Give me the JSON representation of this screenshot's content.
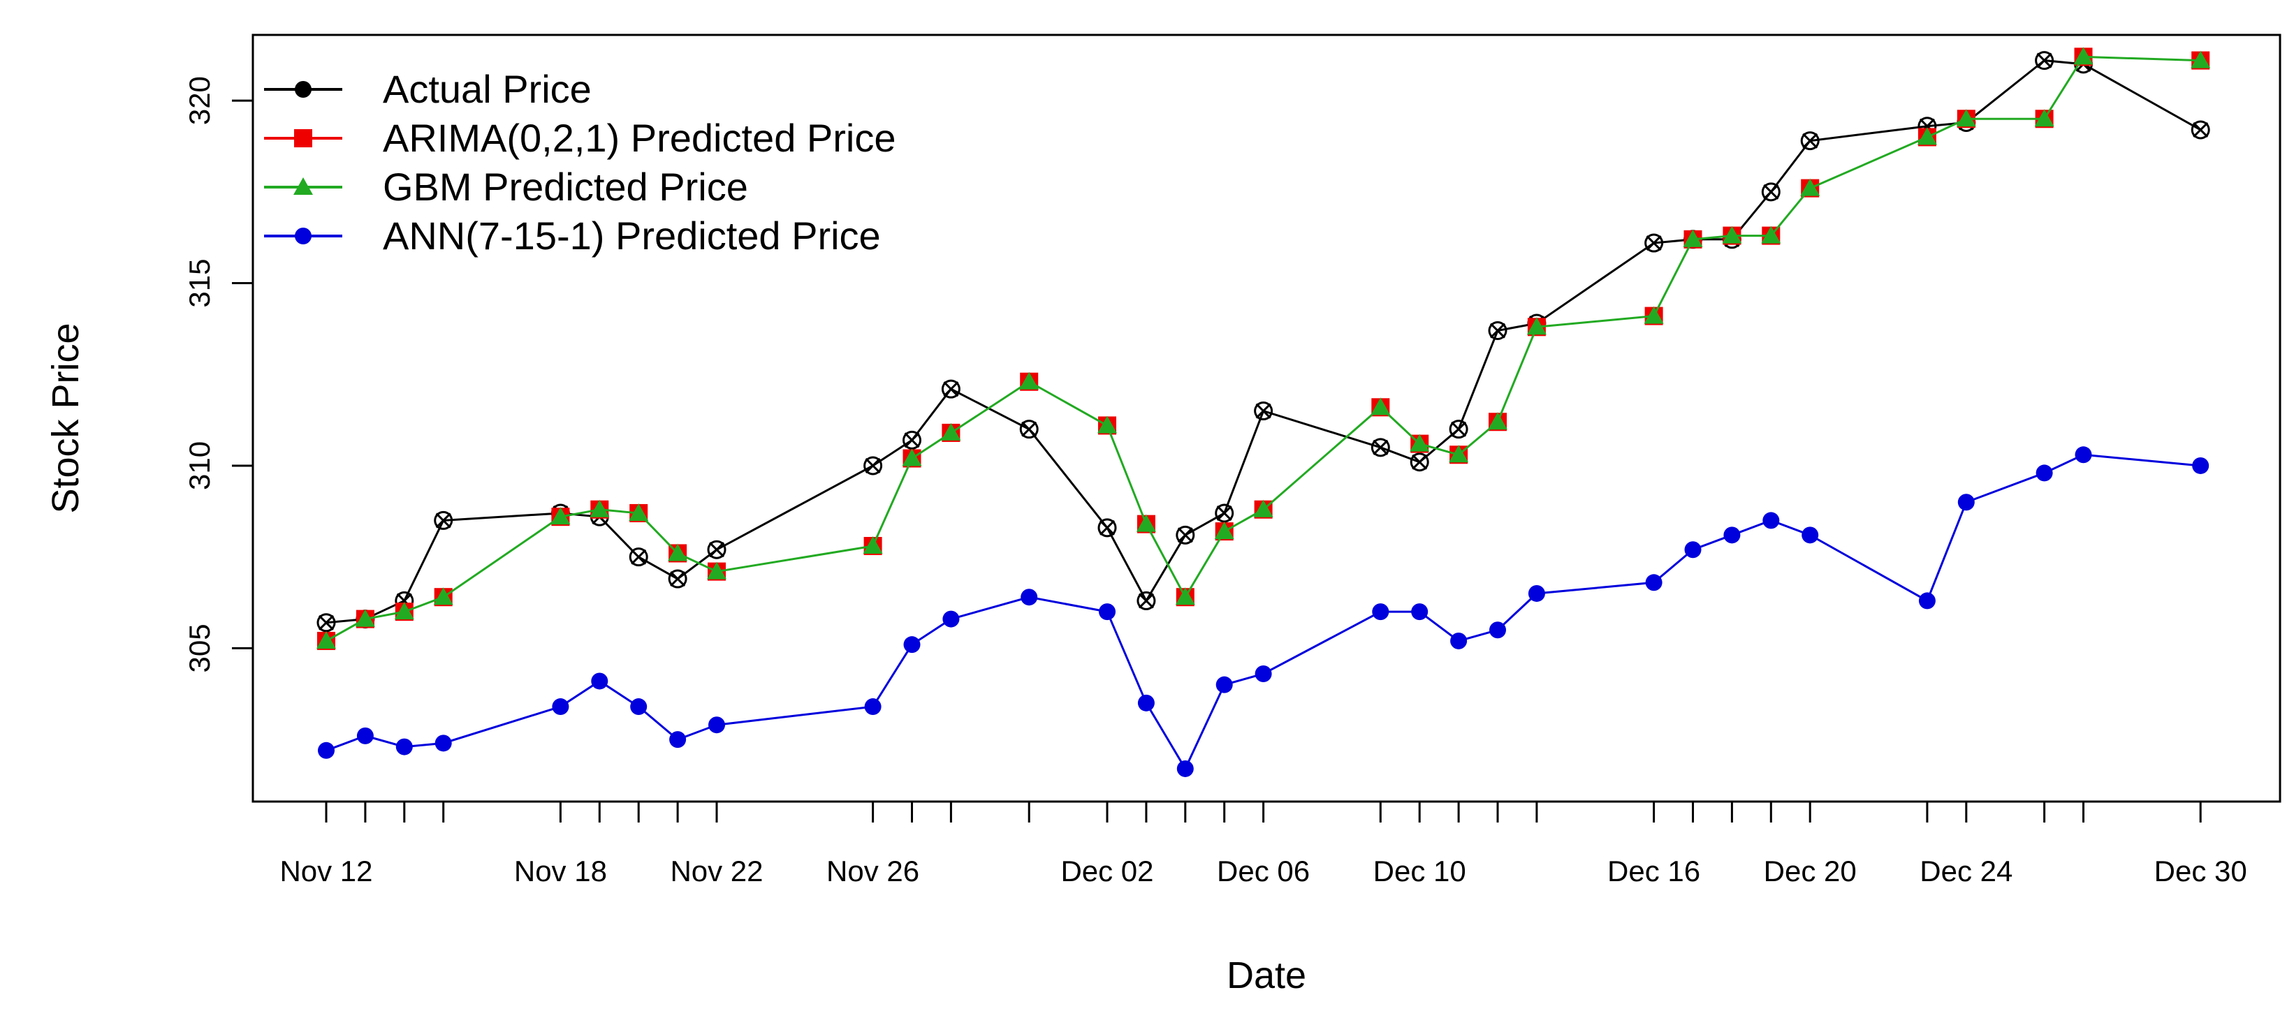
{
  "chart_data": {
    "type": "line",
    "title": "",
    "xlabel": "Date",
    "ylabel": "Stock Price",
    "ylim": [
      300.8,
      321.8
    ],
    "xlim": [
      -2,
      52
    ],
    "yticks": [
      305,
      310,
      315,
      320
    ],
    "xticks": [
      {
        "day": 0,
        "label": "Nov 12"
      },
      {
        "day": 6,
        "label": "Nov 18"
      },
      {
        "day": 10,
        "label": "Nov 22"
      },
      {
        "day": 14,
        "label": "Nov 26"
      },
      {
        "day": 20,
        "label": "Dec 02"
      },
      {
        "day": 24,
        "label": "Dec 06"
      },
      {
        "day": 28,
        "label": "Dec 10"
      },
      {
        "day": 34,
        "label": "Dec 16"
      },
      {
        "day": 38,
        "label": "Dec 20"
      },
      {
        "day": 42,
        "label": "Dec 24"
      },
      {
        "day": 48,
        "label": "Dec 30"
      }
    ],
    "x": [
      0,
      1,
      2,
      3,
      6,
      7,
      8,
      9,
      10,
      14,
      15,
      16,
      18,
      20,
      21,
      22,
      23,
      24,
      27,
      28,
      29,
      30,
      31,
      34,
      35,
      36,
      37,
      38,
      41,
      42,
      44,
      45,
      48
    ],
    "series": [
      {
        "name": "Actual Price",
        "color": "#000000",
        "marker": "circle-x",
        "values": [
          305.7,
          305.8,
          306.3,
          308.5,
          308.7,
          308.6,
          307.5,
          306.9,
          307.7,
          310.0,
          310.7,
          312.1,
          311.0,
          308.3,
          306.3,
          308.1,
          308.7,
          311.5,
          310.5,
          310.1,
          311.0,
          313.7,
          313.9,
          316.1,
          316.2,
          316.2,
          317.5,
          318.9,
          319.3,
          319.4,
          321.1,
          321.0,
          319.2
        ]
      },
      {
        "name": "ARIMA(0,2,1) Predicted Price",
        "color": "#ee0000",
        "marker": "square",
        "values": [
          305.2,
          305.8,
          306.0,
          306.4,
          308.6,
          308.8,
          308.7,
          307.6,
          307.1,
          307.8,
          310.2,
          310.9,
          312.3,
          311.1,
          308.4,
          306.4,
          308.2,
          308.8,
          311.6,
          310.6,
          310.3,
          311.2,
          313.8,
          314.1,
          316.2,
          316.3,
          316.3,
          317.6,
          319.0,
          319.5,
          319.5,
          321.2,
          321.1
        ]
      },
      {
        "name": "GBM Predicted Price",
        "color": "#22aa22",
        "marker": "triangle",
        "values": [
          305.2,
          305.8,
          306.0,
          306.4,
          308.6,
          308.8,
          308.7,
          307.6,
          307.1,
          307.8,
          310.2,
          310.9,
          312.3,
          311.1,
          308.4,
          306.4,
          308.2,
          308.8,
          311.6,
          310.6,
          310.3,
          311.2,
          313.8,
          314.1,
          316.2,
          316.3,
          316.3,
          317.6,
          319.0,
          319.5,
          319.5,
          321.2,
          321.1
        ]
      },
      {
        "name": "ANN(7-15-1) Predicted Price",
        "color": "#0000dd",
        "marker": "dot",
        "values": [
          302.2,
          302.6,
          302.3,
          302.4,
          303.4,
          304.1,
          303.4,
          302.5,
          302.9,
          303.4,
          305.1,
          305.8,
          306.4,
          306.0,
          303.5,
          301.7,
          304.0,
          304.3,
          306.0,
          306.0,
          305.2,
          305.5,
          306.5,
          306.8,
          307.7,
          308.1,
          308.5,
          308.1,
          306.3,
          309.0,
          309.8,
          310.3,
          310.0
        ]
      }
    ],
    "legend_position": "top-left",
    "grid": false
  }
}
